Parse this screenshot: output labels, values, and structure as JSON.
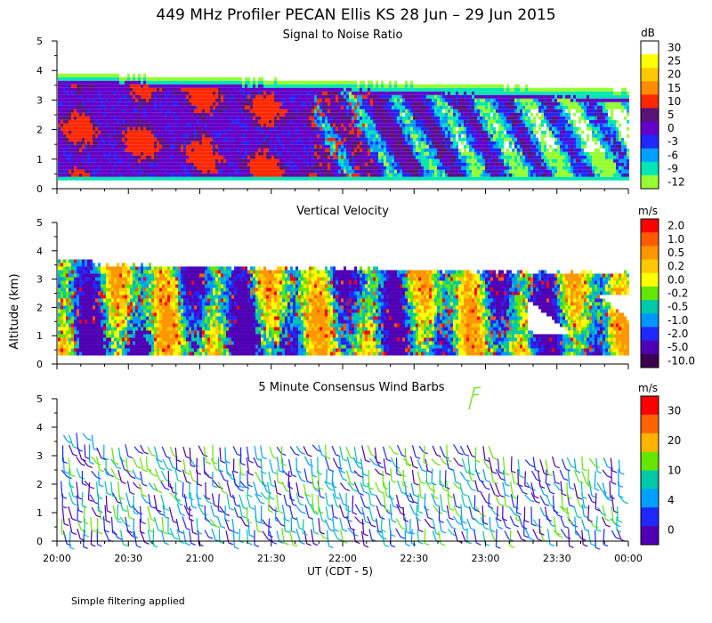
{
  "figure": {
    "title": "449 MHz Profiler PECAN Ellis KS 28 Jun – 29 Jun 2015",
    "ylabel": "Altitude (km)",
    "xlabel": "UT (CDT - 5)",
    "footnote": "Simple filtering applied",
    "xticks": [
      "20:00",
      "20:30",
      "21:00",
      "21:30",
      "22:00",
      "22:30",
      "23:00",
      "23:30",
      "00:00"
    ],
    "yticks": [
      "0",
      "1",
      "2",
      "3",
      "4",
      "5"
    ]
  },
  "chart_data": [
    {
      "type": "heatmap",
      "title": "Signal to Noise Ratio",
      "xlabel": "UT (CDT - 5)",
      "ylabel": "Altitude (km)",
      "ylim": [
        0,
        5
      ],
      "x_range": [
        "20:00",
        "00:00"
      ],
      "colorbar": {
        "unit": "dB",
        "labels": [
          "30",
          "25",
          "20",
          "15",
          "10",
          "5",
          "0",
          "-3",
          "-6",
          "-9",
          "-12"
        ],
        "colors": [
          "#ffffff",
          "#ffff00",
          "#ffc800",
          "#ff8c00",
          "#ff2800",
          "#5a1478",
          "#6400c8",
          "#1e28ff",
          "#00a0ff",
          "#00e6b4",
          "#96ff32"
        ]
      }
    },
    {
      "type": "heatmap",
      "title": "Vertical Velocity",
      "xlabel": "UT (CDT - 5)",
      "ylabel": "Altitude (km)",
      "ylim": [
        0,
        5
      ],
      "x_range": [
        "20:00",
        "00:00"
      ],
      "colorbar": {
        "unit": "m/s",
        "labels": [
          "2.0",
          "1.0",
          "0.5",
          "0.2",
          "0.0",
          "-0.2",
          "-0.5",
          "-1.0",
          "-2.0",
          "-5.0",
          "-10.0"
        ],
        "colors": [
          "#ff0000",
          "#ff5a00",
          "#ff9600",
          "#ffc800",
          "#ffff00",
          "#64e600",
          "#00c8aa",
          "#0096ff",
          "#1e28ff",
          "#5000b4",
          "#3c0050"
        ]
      }
    },
    {
      "type": "scatter",
      "title": "5 Minute Consensus Wind Barbs",
      "xlabel": "UT (CDT - 5)",
      "ylabel": "Altitude (km)",
      "ylim": [
        0,
        5
      ],
      "x_range": [
        "20:00",
        "00:00"
      ],
      "colorbar": {
        "unit": "m/s",
        "labels": [
          "30",
          "20",
          "10",
          "4",
          "0"
        ],
        "colors": [
          "#ff0000",
          "#ff6400",
          "#ffb400",
          "#64e600",
          "#00c8aa",
          "#00a0ff",
          "#1e28ff",
          "#5000b4"
        ]
      }
    }
  ]
}
